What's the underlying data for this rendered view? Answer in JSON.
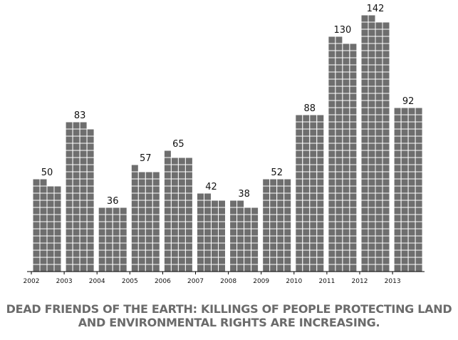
{
  "chart_data": {
    "type": "bar",
    "categories": [
      "2002",
      "2003",
      "2004",
      "2005",
      "2006",
      "2007",
      "2008",
      "2009",
      "2010",
      "2011",
      "2012",
      "2013"
    ],
    "values": [
      50,
      83,
      36,
      57,
      65,
      42,
      38,
      52,
      88,
      130,
      142,
      92
    ],
    "tick_labels": [
      "2002",
      "2003",
      "2004",
      "2005",
      "2006",
      "2007",
      "2008",
      "2009",
      "2010",
      "2011",
      "2012",
      "2013"
    ],
    "ylim": [
      0,
      145
    ],
    "grid": false,
    "bar_style": "unit squares (one square per killing)",
    "colors": {
      "bar": "#6e6e6e",
      "cell_line": "#ffffff",
      "axis": "#000000",
      "caption": "#6b6b6b"
    }
  },
  "caption": {
    "line1": "DEAD FRIENDS OF THE EARTH: KILLINGS OF PEOPLE PROTECTING LAND",
    "line2": "AND ENVIRONMENTAL RIGHTS ARE INCREASING."
  }
}
